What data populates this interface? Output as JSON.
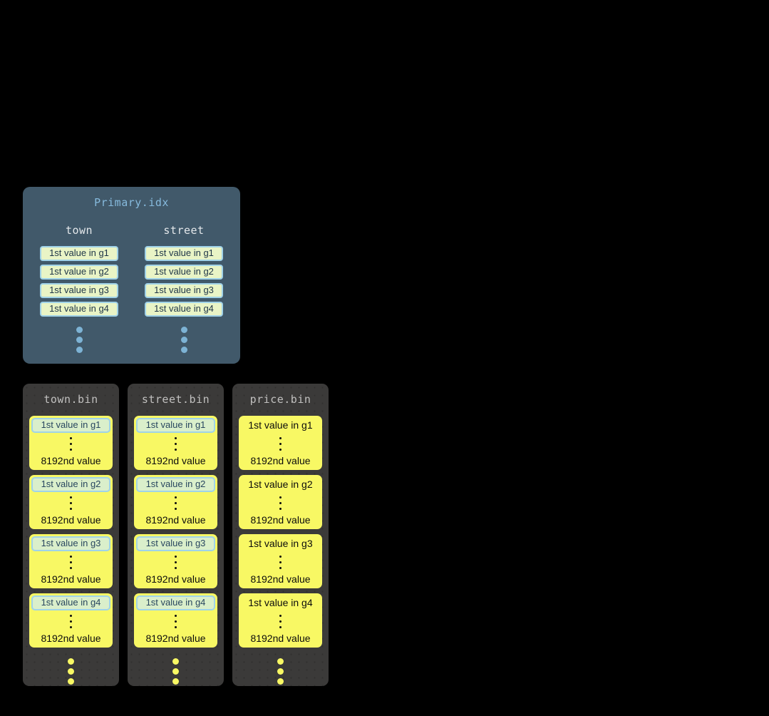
{
  "colors": {
    "page_background": "#000000",
    "primary_box_background": "#41596a",
    "primary_title_text": "#86badd",
    "primary_header_text": "#e4e8eb",
    "index_cell_background": "#e9f4c6",
    "index_cell_border": "#a0d2e8",
    "index_cell_text": "#1d3447",
    "blue_dot": "#7db3d5",
    "bin_background": "#3b3a39",
    "bin_title_text": "#c1c0bf",
    "granule_background": "#f8f864",
    "granule_highlight_background": "#daefcb",
    "granule_highlight_border": "#9fd3e8",
    "granule_highlight_text": "#28465f",
    "granule_text": "#0c0c0c"
  },
  "primary_index": {
    "title": "Primary.idx",
    "columns": [
      {
        "name": "town",
        "cells": [
          "1st value in g1",
          "1st value in g2",
          "1st value in g3",
          "1st value in g4"
        ]
      },
      {
        "name": "street",
        "cells": [
          "1st value in g1",
          "1st value in g2",
          "1st value in g3",
          "1st value in g4"
        ]
      }
    ]
  },
  "bin_files": [
    {
      "title": "town.bin",
      "granules": [
        {
          "first_value": "1st value in g1",
          "last_value": "8192nd value"
        },
        {
          "first_value": "1st value in g2",
          "last_value": "8192nd value"
        },
        {
          "first_value": "1st value in g3",
          "last_value": "8192nd value"
        },
        {
          "first_value": "1st value in g4",
          "last_value": "8192nd value"
        }
      ]
    },
    {
      "title": "street.bin",
      "granules": [
        {
          "first_value": "1st value in g1",
          "last_value": "8192nd value"
        },
        {
          "first_value": "1st value in g2",
          "last_value": "8192nd value"
        },
        {
          "first_value": "1st value in g3",
          "last_value": "8192nd value"
        },
        {
          "first_value": "1st value in g4",
          "last_value": "8192nd value"
        }
      ]
    },
    {
      "title": "price.bin",
      "granules": [
        {
          "first_value": "1st value in g1",
          "last_value": "8192nd value"
        },
        {
          "first_value": "1st value in g2",
          "last_value": "8192nd value"
        },
        {
          "first_value": "1st value in g3",
          "last_value": "8192nd value"
        },
        {
          "first_value": "1st value in g4",
          "last_value": "8192nd value"
        }
      ]
    }
  ]
}
